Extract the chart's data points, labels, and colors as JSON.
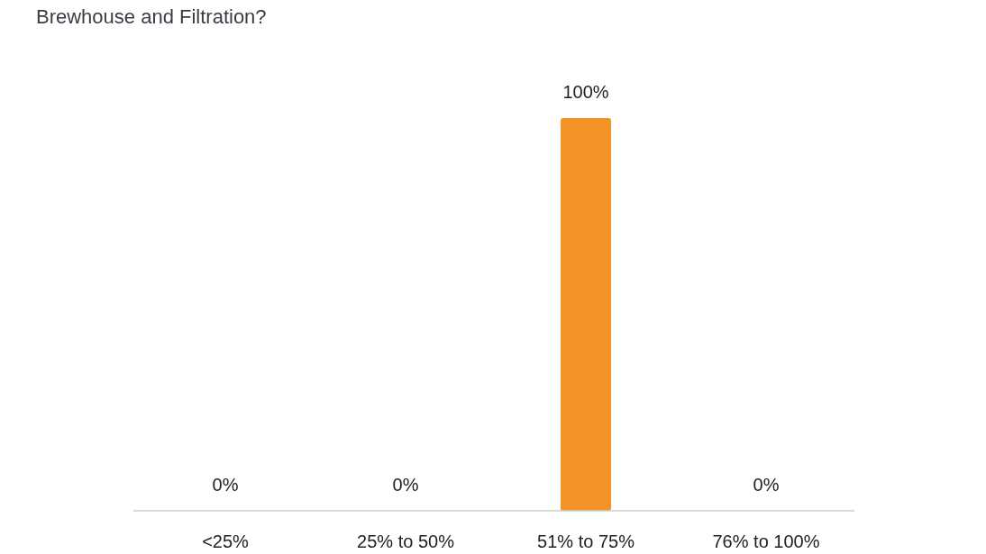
{
  "chart_data": {
    "type": "bar",
    "title": "Brewhouse and Filtration?",
    "categories": [
      "<25%",
      "25% to 50%",
      "51% to 75%",
      "76% to 100%"
    ],
    "values": [
      0,
      0,
      100,
      0
    ],
    "value_labels": [
      "0%",
      "0%",
      "100%",
      "0%"
    ],
    "color": "#f39325"
  }
}
